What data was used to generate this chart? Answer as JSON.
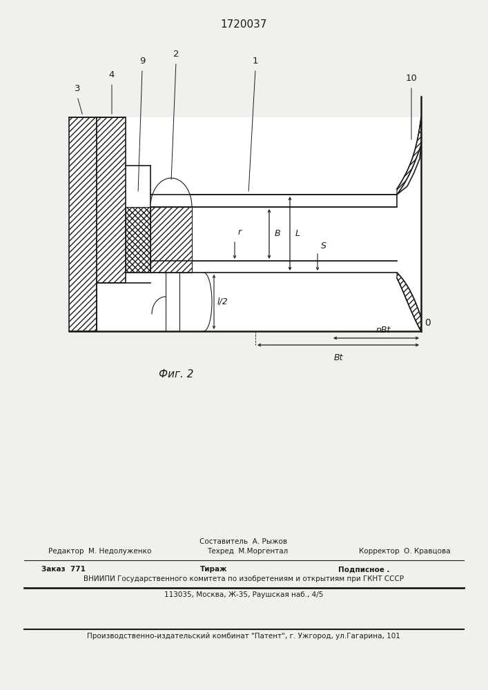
{
  "title": "1720037",
  "fig_label": "Фиг. 2",
  "background_color": "#f2f0ed",
  "line_color": "#1a1a1a",
  "footer": {
    "line1_center_top": "Составитель  А. Рыжов",
    "line1_left": "Редактор  М. Недолуженко",
    "line1_center": "Техред  М.Моргентал",
    "line1_right": "Корректор  О. Кравцова",
    "line2_col1": "Заказ  771",
    "line2_col2": "Тираж",
    "line2_col3": "Подписное .",
    "line3": "ВНИИПИ Государственного комитета по изобретениям и открытиям при ГКНТ СССР",
    "line4": "113035, Москва, Ж-35, Раушская наб., 4/5",
    "line5": "Производственно-издательский комбинат \"Патент\", г. Ужгород, ул.Гагарина, 101"
  }
}
